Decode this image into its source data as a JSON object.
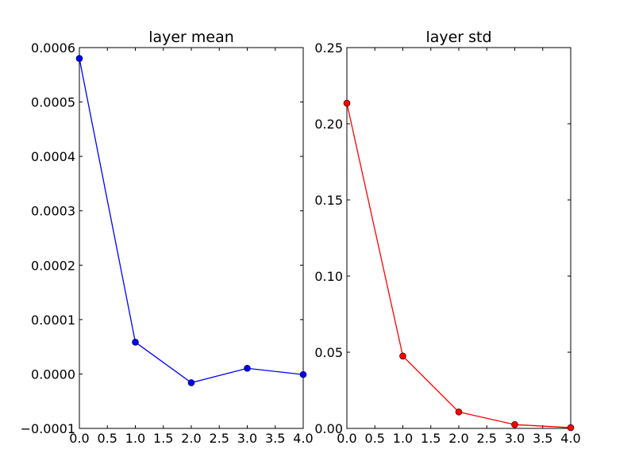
{
  "chart_data": [
    {
      "type": "line",
      "title": "layer mean",
      "xlabel": "",
      "ylabel": "",
      "xlim": [
        0.0,
        4.0
      ],
      "ylim": [
        -0.0001,
        0.0006
      ],
      "xticks": [
        "0.0",
        "0.5",
        "1.0",
        "1.5",
        "2.0",
        "2.5",
        "3.0",
        "3.5",
        "4.0"
      ],
      "yticks": [
        "−0.0001",
        "0.0000",
        "0.0001",
        "0.0002",
        "0.0003",
        "0.0004",
        "0.0005",
        "0.0006"
      ],
      "grid": false,
      "color": "#0000ff",
      "x": [
        0,
        1,
        2,
        3,
        4
      ],
      "y": [
        0.00058,
        5.85e-05,
        -1.6e-05,
        1.05e-05,
        -1e-06
      ]
    },
    {
      "type": "line",
      "title": "layer std",
      "xlabel": "",
      "ylabel": "",
      "xlim": [
        0.0,
        4.0
      ],
      "ylim": [
        0.0,
        0.25
      ],
      "xticks": [
        "0.0",
        "0.5",
        "1.0",
        "1.5",
        "2.0",
        "2.5",
        "3.0",
        "3.5",
        "4.0"
      ],
      "yticks": [
        "0.00",
        "0.05",
        "0.10",
        "0.15",
        "0.20",
        "0.25"
      ],
      "grid": false,
      "color": "#ff0000",
      "x": [
        0,
        1,
        2,
        3,
        4
      ],
      "y": [
        0.2135,
        0.0475,
        0.0108,
        0.0025,
        0.0005
      ]
    }
  ]
}
